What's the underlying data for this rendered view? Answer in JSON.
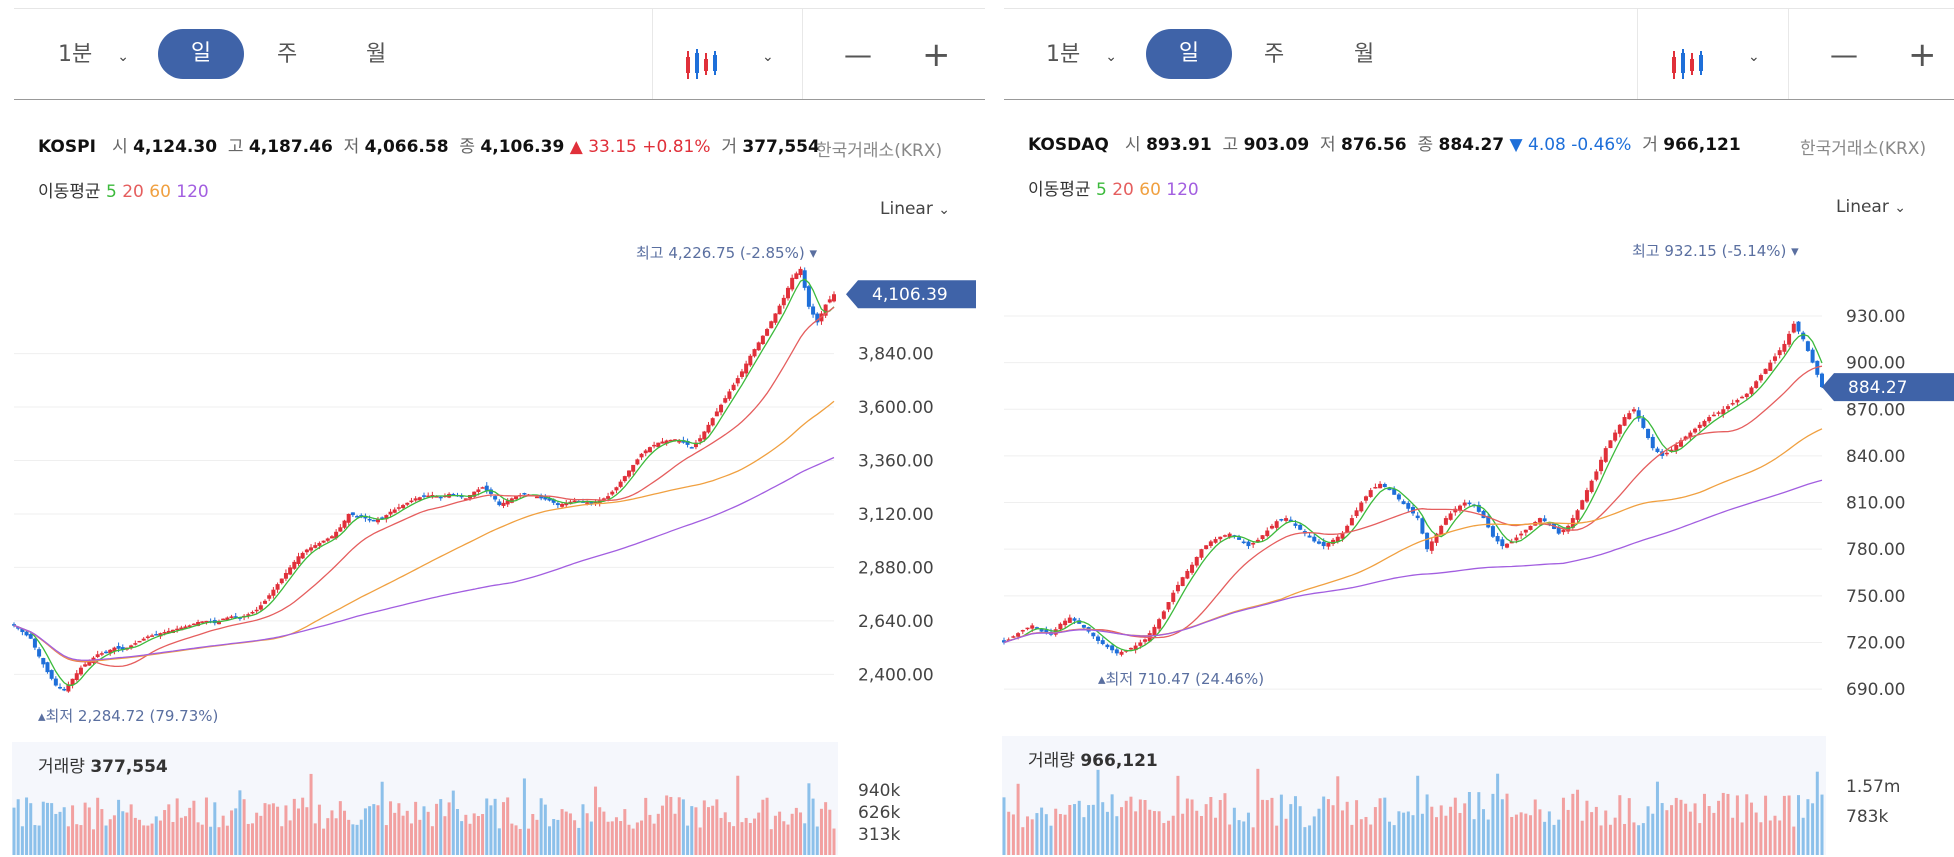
{
  "toolbar": {
    "interval_label": "1분",
    "tabs": [
      "일",
      "주",
      "월"
    ],
    "zoom_out": "—",
    "zoom_in": "+"
  },
  "panels": [
    {
      "index": "KOSPI",
      "open_label": "시",
      "open": "4,124.30",
      "high_label": "고",
      "high": "4,187.46",
      "low_label": "저",
      "low": "4,066.58",
      "close_label": "종",
      "close": "4,106.39",
      "change_arrow": "▲",
      "change": "33.15 +0.81%",
      "vol_label": "거",
      "vol": "377,554",
      "exchange": "한국거래소(KRX)",
      "ma_title": "이동평균",
      "ma": [
        "5",
        "20",
        "60",
        "120"
      ],
      "scale": "Linear",
      "price_tag": "4,106.39",
      "hi_label": "최고",
      "hi_value": "4,226.75 (-2.85%)",
      "lo_label": "최저",
      "lo_value": "2,284.72 (79.73%)",
      "volume_title": "거래량",
      "volume_value": "377,554",
      "volume_ticks": [
        "940k",
        "626k",
        "313k"
      ]
    },
    {
      "index": "KOSDAQ",
      "open_label": "시",
      "open": "893.91",
      "high_label": "고",
      "high": "903.09",
      "low_label": "저",
      "low": "876.56",
      "close_label": "종",
      "close": "884.27",
      "change_arrow": "▼",
      "change": "4.08 -0.46%",
      "vol_label": "거",
      "vol": "966,121",
      "exchange": "한국거래소(KRX)",
      "ma_title": "이동평균",
      "ma": [
        "5",
        "20",
        "60",
        "120"
      ],
      "scale": "Linear",
      "price_tag": "884.27",
      "hi_label": "최고",
      "hi_value": "932.15 (-5.14%)",
      "lo_label": "최저",
      "lo_value": "710.47 (24.46%)",
      "volume_title": "거래량",
      "volume_value": "966,121",
      "volume_ticks": [
        "1.57m",
        "783k"
      ]
    }
  ],
  "colors": {
    "up": "#e0303a",
    "down": "#1e6fd9",
    "accent": "#3f63a8",
    "ma5": "#3cba3c",
    "ma20": "#e55e5e",
    "ma60": "#f0a040",
    "ma120": "#a25ee0",
    "vol_up": "#f2a0a0",
    "vol_down": "#8cc0ea"
  },
  "chart_data": [
    {
      "type": "candlestick",
      "title": "KOSPI",
      "y_ticks": [
        "3,840.00",
        "3,600.00",
        "3,360.00",
        "3,120.00",
        "2,880.00",
        "2,640.00",
        "2,400.00"
      ],
      "y_tick_values": [
        3840,
        3600,
        3360,
        3120,
        2880,
        2640,
        2400
      ],
      "ylim": [
        2240,
        4260
      ],
      "close_series": [
        2620,
        2590,
        2560,
        2480,
        2410,
        2350,
        2330,
        2380,
        2430,
        2460,
        2490,
        2500,
        2520,
        2510,
        2530,
        2550,
        2570,
        2580,
        2590,
        2600,
        2610,
        2620,
        2635,
        2640,
        2630,
        2650,
        2660,
        2655,
        2670,
        2690,
        2730,
        2780,
        2830,
        2880,
        2930,
        2960,
        2980,
        3000,
        3020,
        3060,
        3120,
        3110,
        3100,
        3090,
        3100,
        3130,
        3150,
        3170,
        3190,
        3200,
        3205,
        3195,
        3210,
        3200,
        3190,
        3220,
        3240,
        3210,
        3160,
        3180,
        3200,
        3210,
        3205,
        3190,
        3180,
        3160,
        3170,
        3180,
        3175,
        3170,
        3180,
        3200,
        3240,
        3290,
        3340,
        3390,
        3420,
        3440,
        3450,
        3455,
        3440,
        3420,
        3460,
        3520,
        3580,
        3640,
        3700,
        3760,
        3830,
        3890,
        3950,
        4020,
        4090,
        4180,
        4220,
        4050,
        3980,
        4060,
        4106.39
      ],
      "low": 2284.72,
      "high": 4226.75,
      "close": 4106.39,
      "volume_scale_ticks": [
        940000,
        626000,
        313000
      ]
    },
    {
      "type": "candlestick",
      "title": "KOSDAQ",
      "y_ticks": [
        "930.00",
        "900.00",
        "870.00",
        "840.00",
        "810.00",
        "780.00",
        "750.00",
        "720.00",
        "690.00"
      ],
      "y_tick_values": [
        930,
        900,
        870,
        840,
        810,
        780,
        750,
        720,
        690
      ],
      "ylim": [
        683,
        966
      ],
      "close_series": [
        720,
        724,
        728,
        731,
        727,
        725,
        732,
        736,
        732,
        727,
        721,
        717,
        713,
        715,
        718,
        722,
        730,
        740,
        752,
        762,
        770,
        780,
        785,
        788,
        790,
        786,
        782,
        786,
        792,
        798,
        800,
        795,
        790,
        785,
        782,
        786,
        790,
        800,
        810,
        818,
        822,
        818,
        812,
        806,
        800,
        780,
        790,
        800,
        806,
        810,
        808,
        800,
        788,
        782,
        785,
        790,
        795,
        800,
        796,
        790,
        795,
        805,
        818,
        830,
        845,
        855,
        865,
        870,
        858,
        845,
        840,
        844,
        850,
        855,
        860,
        865,
        868,
        872,
        876,
        880,
        888,
        896,
        904,
        912,
        925,
        915,
        900,
        884.27
      ],
      "low": 710.47,
      "high": 932.15,
      "close": 884.27,
      "volume_scale_ticks": [
        1570000,
        783000
      ]
    }
  ]
}
